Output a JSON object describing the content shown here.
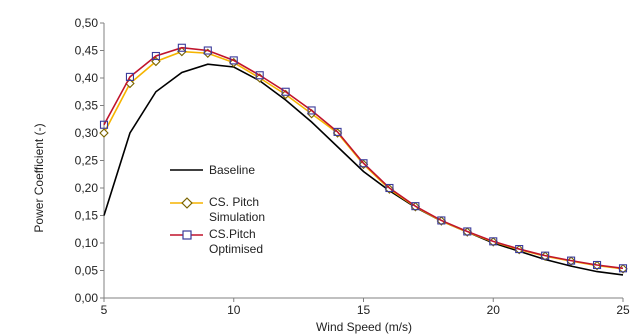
{
  "chart_data": {
    "type": "line",
    "xlabel": "Wind Speed (m/s)",
    "ylabel": "Power Coefficient (-)",
    "xlim": [
      5,
      25
    ],
    "ylim": [
      0,
      0.5
    ],
    "x_ticks": [
      "5",
      "10",
      "15",
      "20",
      "25"
    ],
    "y_ticks": [
      "0,00",
      "0,05",
      "0,10",
      "0,15",
      "0,20",
      "0,25",
      "0,30",
      "0,35",
      "0,40",
      "0,45",
      "0,50"
    ],
    "grid": false,
    "legend_position": "left-middle",
    "series": [
      {
        "name": "Baseline",
        "color": "#000000",
        "marker": "none",
        "x": [
          5,
          6,
          7,
          8,
          9,
          10,
          11,
          12,
          13,
          14,
          15,
          16,
          17,
          18,
          19,
          20,
          21,
          22,
          23,
          24,
          25
        ],
        "y": [
          0.15,
          0.3,
          0.375,
          0.41,
          0.425,
          0.42,
          0.395,
          0.36,
          0.32,
          0.275,
          0.23,
          0.195,
          0.165,
          0.14,
          0.12,
          0.1,
          0.085,
          0.07,
          0.058,
          0.048,
          0.042
        ]
      },
      {
        "name": "CS. Pitch Simulation",
        "color": "#F5B400",
        "marker": "diamond",
        "x": [
          5,
          6,
          7,
          8,
          9,
          10,
          11,
          12,
          13,
          14,
          15,
          16,
          17,
          18,
          19,
          20,
          21,
          22,
          23,
          24,
          25
        ],
        "y": [
          0.3,
          0.39,
          0.43,
          0.448,
          0.445,
          0.428,
          0.4,
          0.37,
          0.335,
          0.3,
          0.243,
          0.198,
          0.166,
          0.14,
          0.12,
          0.102,
          0.088,
          0.076,
          0.067,
          0.059,
          0.053
        ]
      },
      {
        "name": "CS.Pitch Optimised",
        "color": "#C0142C",
        "marker": "square",
        "x": [
          5,
          6,
          7,
          8,
          9,
          10,
          11,
          12,
          13,
          14,
          15,
          16,
          17,
          18,
          19,
          20,
          21,
          22,
          23,
          24,
          25
        ],
        "y": [
          0.315,
          0.402,
          0.44,
          0.455,
          0.45,
          0.432,
          0.405,
          0.375,
          0.341,
          0.302,
          0.245,
          0.2,
          0.167,
          0.141,
          0.121,
          0.103,
          0.089,
          0.077,
          0.068,
          0.06,
          0.054
        ]
      }
    ],
    "legend": {
      "line1": "Baseline",
      "line2a": "CS. Pitch",
      "line2b": "Simulation",
      "line3a": "CS.Pitch",
      "line3b": "Optimised"
    }
  }
}
